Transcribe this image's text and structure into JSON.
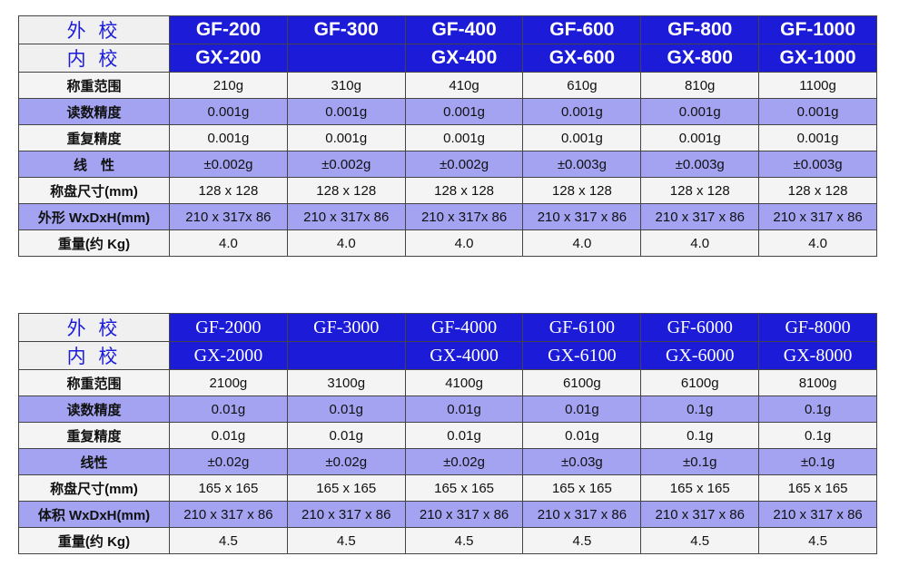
{
  "tables": [
    {
      "header_rows": [
        [
          "外 校",
          "GF-200",
          "GF-300",
          "GF-400",
          "GF-600",
          "GF-800",
          "GF-1000"
        ],
        [
          "内 校",
          "GX-200",
          null,
          "GX-400",
          "GX-600",
          "GX-800",
          "GX-1000"
        ]
      ],
      "rows": [
        [
          "称重范围",
          "210g",
          "310g",
          "410g",
          "610g",
          "810g",
          "1100g"
        ],
        [
          "读数精度",
          "0.001g",
          "0.001g",
          "0.001g",
          "0.001g",
          "0.001g",
          "0.001g"
        ],
        [
          "重复精度",
          "0.001g",
          "0.001g",
          "0.001g",
          "0.001g",
          "0.001g",
          "0.001g"
        ],
        [
          "线　性",
          "±0.002g",
          "±0.002g",
          "±0.002g",
          "±0.003g",
          "±0.003g",
          "±0.003g"
        ],
        [
          "称盘尺寸(mm)",
          "128 x 128",
          "128 x 128",
          "128 x 128",
          "128 x 128",
          "128 x 128",
          "128 x 128"
        ],
        [
          "外形 WxDxH(mm)",
          "210 x 317x 86",
          "210 x 317x 86",
          "210 x 317x 86",
          "210 x 317 x 86",
          "210 x 317 x 86",
          "210 x 317 x 86"
        ],
        [
          "重量(约 Kg)",
          "4.0",
          "4.0",
          "4.0",
          "4.0",
          "4.0",
          "4.0"
        ]
      ]
    },
    {
      "header_rows": [
        [
          "外 校",
          "GF-2000",
          "GF-3000",
          "GF-4000",
          "GF-6100",
          "GF-6000",
          "GF-8000"
        ],
        [
          "内 校",
          "GX-2000",
          null,
          "GX-4000",
          "GX-6100",
          "GX-6000",
          "GX-8000"
        ]
      ],
      "rows": [
        [
          "称重范围",
          "2100g",
          "3100g",
          "4100g",
          "6100g",
          "6100g",
          "8100g"
        ],
        [
          "读数精度",
          "0.01g",
          "0.01g",
          "0.01g",
          "0.01g",
          "0.1g",
          "0.1g"
        ],
        [
          "重复精度",
          "0.01g",
          "0.01g",
          "0.01g",
          "0.01g",
          "0.1g",
          "0.1g"
        ],
        [
          "线性",
          "±0.02g",
          "±0.02g",
          "±0.02g",
          "±0.03g",
          "±0.1g",
          "±0.1g"
        ],
        [
          "称盘尺寸(mm)",
          "165 x 165",
          "165 x 165",
          "165 x 165",
          "165 x 165",
          "165 x 165",
          "165 x 165"
        ],
        [
          "体积 WxDxH(mm)",
          "210 x 317 x 86",
          "210 x 317 x 86",
          "210 x 317 x 86",
          "210 x 317 x 86",
          "210 x 317 x 86",
          "210 x 317 x 86"
        ],
        [
          "重量(约 Kg)",
          "4.5",
          "4.5",
          "4.5",
          "4.5",
          "4.5",
          "4.5"
        ]
      ]
    }
  ]
}
